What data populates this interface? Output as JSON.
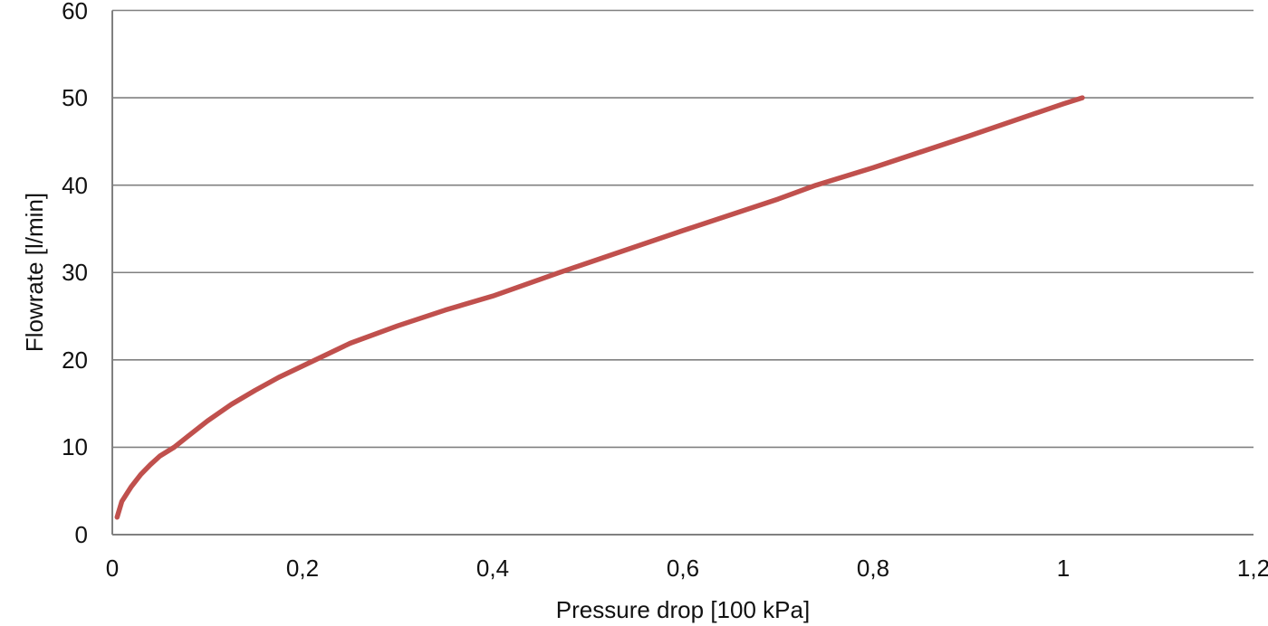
{
  "chart_data": {
    "type": "line",
    "title": "",
    "xlabel": "Pressure drop [100 kPa]",
    "ylabel": "Flowrate [l/min]",
    "xlim": [
      0,
      1.2
    ],
    "ylim": [
      0,
      60
    ],
    "x_ticks": [
      0,
      0.2,
      0.4,
      0.6,
      0.8,
      1.0,
      1.2
    ],
    "x_tick_labels": [
      "0",
      "0,2",
      "0,4",
      "0,6",
      "0,8",
      "1",
      "1,2"
    ],
    "y_ticks": [
      0,
      10,
      20,
      30,
      40,
      50,
      60
    ],
    "y_tick_labels": [
      "0",
      "10",
      "20",
      "30",
      "40",
      "50",
      "60"
    ],
    "grid": "horizontal-only",
    "legend_position": "none",
    "decimal_separator": ",",
    "colors": {
      "series": "#C0504D",
      "gridline": "#808080",
      "axis": "#808080",
      "text": "#111111",
      "background": "#FFFFFF"
    },
    "series": [
      {
        "name": "Flowrate vs pressure drop",
        "color": "#C0504D",
        "stroke_width": 5.5,
        "points": [
          [
            0.005,
            2.0
          ],
          [
            0.01,
            3.8
          ],
          [
            0.02,
            5.5
          ],
          [
            0.03,
            6.9
          ],
          [
            0.04,
            8.0
          ],
          [
            0.05,
            9.0
          ],
          [
            0.065,
            10.0
          ],
          [
            0.08,
            11.3
          ],
          [
            0.1,
            13.0
          ],
          [
            0.125,
            14.9
          ],
          [
            0.15,
            16.5
          ],
          [
            0.175,
            18.0
          ],
          [
            0.2,
            19.3
          ],
          [
            0.25,
            21.9
          ],
          [
            0.3,
            23.9
          ],
          [
            0.35,
            25.7
          ],
          [
            0.4,
            27.3
          ],
          [
            0.47,
            30.0
          ],
          [
            0.5,
            31.1
          ],
          [
            0.6,
            34.8
          ],
          [
            0.7,
            38.4
          ],
          [
            0.74,
            40.0
          ],
          [
            0.8,
            42.0
          ],
          [
            0.9,
            45.6
          ],
          [
            1.0,
            49.3
          ],
          [
            1.02,
            50.0
          ]
        ]
      }
    ]
  }
}
